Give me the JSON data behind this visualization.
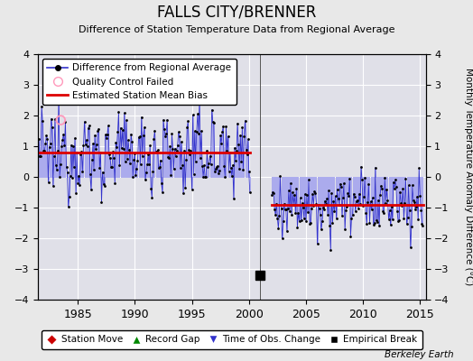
{
  "title": "FALLS CITY/BRENNER",
  "subtitle": "Difference of Station Temperature Data from Regional Average",
  "ylabel": "Monthly Temperature Anomaly Difference (°C)",
  "xlim": [
    1981.5,
    2015.5
  ],
  "ylim": [
    -4,
    4
  ],
  "yticks": [
    -4,
    -3,
    -2,
    -1,
    0,
    1,
    2,
    3,
    4
  ],
  "xticks": [
    1985,
    1990,
    1995,
    2000,
    2005,
    2010,
    2015
  ],
  "bias1": 0.8,
  "bias2": -0.9,
  "break_year": 2001.0,
  "phase1_start": 1981.5,
  "phase1_end": 2000.1,
  "phase2_start": 2002.0,
  "phase2_end": 2015.3,
  "qc_fail_year": 1983.5,
  "qc_fail_val": 1.85,
  "blue_line_color": "#3333cc",
  "blue_fill_color": "#aaaaee",
  "red_line_color": "#dd0000",
  "background_color": "#e8e8e8",
  "plot_bg_color": "#e0e0e8",
  "grid_color": "#ffffff",
  "watermark": "Berkeley Earth",
  "seed": 12345
}
